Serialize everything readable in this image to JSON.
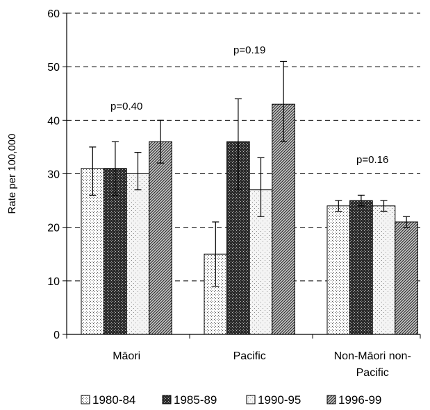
{
  "chart_data": {
    "type": "bar",
    "ylabel": "Rate per 100,000",
    "ylim": [
      0,
      60
    ],
    "yticks": [
      0,
      10,
      20,
      30,
      40,
      50,
      60
    ],
    "grid": "horizontal-dashed",
    "legend_position": "bottom",
    "categories": [
      {
        "lines": [
          "Māori"
        ]
      },
      {
        "lines": [
          "Pacific"
        ]
      },
      {
        "lines": [
          "Non-Māori non-",
          "Pacific"
        ]
      }
    ],
    "series": [
      {
        "name": "1980-84",
        "pattern": "dots",
        "values": [
          31,
          15,
          24
        ],
        "err_low": [
          26,
          9,
          23
        ],
        "err_high": [
          35,
          21,
          25
        ]
      },
      {
        "name": "1985-89",
        "pattern": "dark-checks",
        "values": [
          31,
          36,
          25
        ],
        "err_low": [
          26,
          27,
          24
        ],
        "err_high": [
          36,
          44,
          26
        ]
      },
      {
        "name": "1990-95",
        "pattern": "light-dots",
        "values": [
          30,
          27,
          24
        ],
        "err_low": [
          27,
          22,
          23
        ],
        "err_high": [
          34,
          33,
          25
        ]
      },
      {
        "name": "1996-99",
        "pattern": "diagonal",
        "values": [
          36,
          43,
          21
        ],
        "err_low": [
          32,
          36,
          20
        ],
        "err_high": [
          40,
          51,
          22
        ]
      }
    ],
    "annotations": [
      {
        "text": "p=0.40",
        "category": 0,
        "y": 42
      },
      {
        "text": "p=0.19",
        "category": 1,
        "y": 52.5
      },
      {
        "text": "p=0.16",
        "category": 2,
        "y": 32
      }
    ]
  }
}
